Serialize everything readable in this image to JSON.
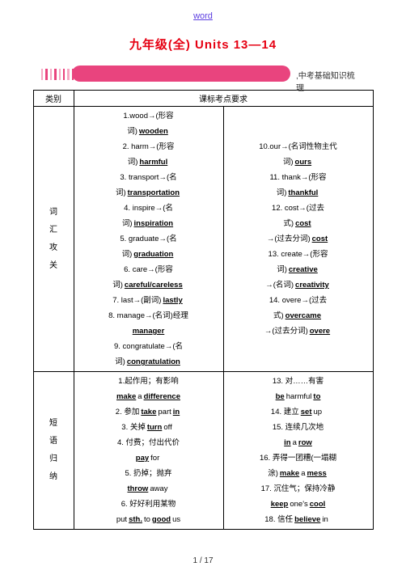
{
  "header_link": "word",
  "title": "九年级(全) Units 13—14",
  "banner_text": ",中考基础知识梳理",
  "table_headers": {
    "category": "类别",
    "points": "课标考点要求"
  },
  "category1": "词\n汇\n攻\n关",
  "category2": "短\n语\n归\n纳",
  "vocab_col1": [
    "1.wood→(形容",
    "词)__wooden__",
    "2. harm→(形容",
    "词)__harmful__",
    "3. transport→(名",
    "词)__transportation__",
    "4. inspire→(名",
    "词)__inspiration__",
    "5. graduate→(名",
    "词)__graduation__",
    "6. care→(形容",
    "词)__careful/careless__",
    "7. last→(副词)__lastly__",
    "8. manage→(名词)经理",
    "__manager__",
    "9. congratulate→(名",
    "词)__congratulation__"
  ],
  "vocab_col2": [
    "",
    "",
    "10.our→(名词性物主代",
    "词)__ours__",
    "11. thank→(形容",
    "词)__thankful__",
    "12. cost→(过去",
    "式)__cost__",
    "→(过去分词)__cost__",
    "13. create→(形容",
    "词)__creative__",
    "→(名词)__creativity__",
    "14. overe→(过去",
    "式)__overcame__",
    "→(过去分词)__overe__",
    "",
    ""
  ],
  "phrase_col1": [
    "1.起作用；有影响",
    "__make__a__difference__",
    "2. 参加__take__part__in__",
    "3. 关掉__turn__off__",
    "4. 付费；付出代价",
    "__pay__for__",
    "5. 扔掉；抛弃",
    "__throw__away__",
    "6. 好好利用某物",
    "put__sth.__to__good__us"
  ],
  "phrase_col2": [
    "13. 对……有害",
    "__be__harmful__to__",
    "14. 建立__set__up__",
    "15. 连续几次地",
    "__in__a__row__",
    "16. 弄得一团糟(一塌糊",
    "涂)__make__a__mess__",
    "17. 沉住气；保持冷静",
    "__keep__one's__cool__",
    "18. 信任__believe__in__"
  ],
  "footer": "1 / 17",
  "colors": {
    "title": "#e60012",
    "link": "#5b3de0",
    "pill": "#e9447e",
    "body": "#000000",
    "background": "#ffffff"
  }
}
